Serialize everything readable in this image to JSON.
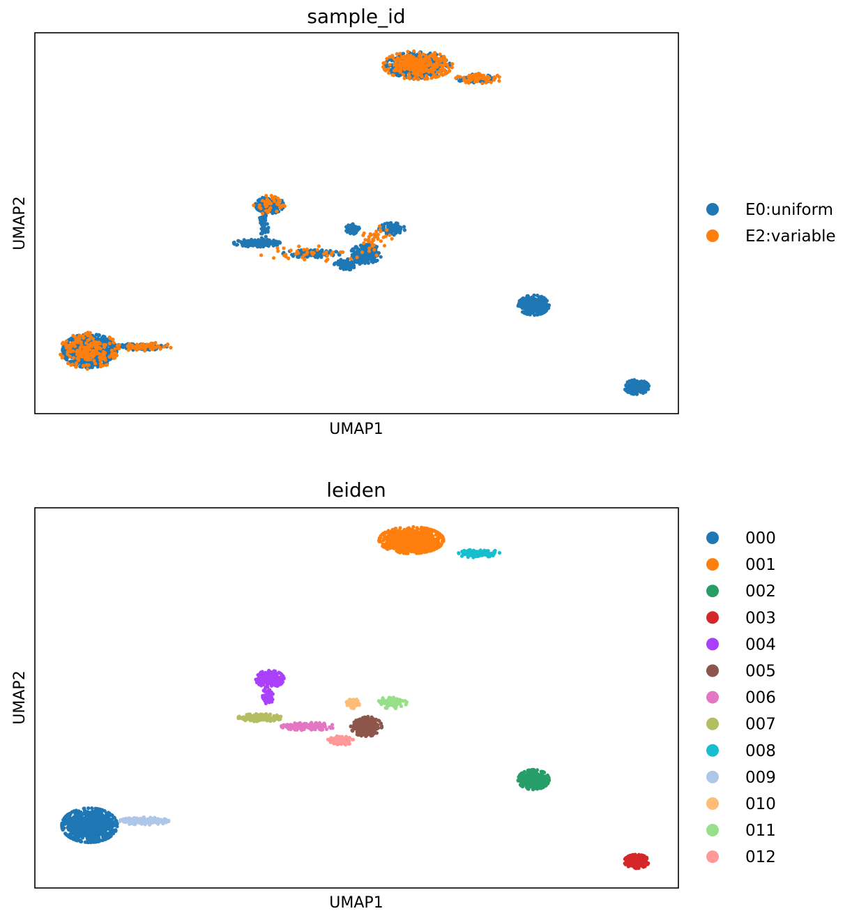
{
  "chart_data": [
    {
      "type": "scatter",
      "title": "sample_id",
      "xlabel": "UMAP1",
      "ylabel": "UMAP2",
      "xlim": [
        0,
        100
      ],
      "ylim": [
        0,
        100
      ],
      "grid": false,
      "ticks": false,
      "legend_position": "right",
      "legend": [
        {
          "label": "E0:uniform",
          "color": "#1f77b4"
        },
        {
          "label": "E2:variable",
          "color": "#ff7f0e"
        }
      ],
      "clusters": [
        {
          "label": "E0:uniform",
          "x": 8.5,
          "y": 16.5,
          "rx": 4.2,
          "ry": 4.4,
          "n": 800
        },
        {
          "label": "E0:uniform",
          "x": 16.5,
          "y": 17.6,
          "rx": 4.0,
          "ry": 0.9,
          "n": 150
        },
        {
          "label": "E0:uniform",
          "x": 59.5,
          "y": 91.5,
          "rx": 5.0,
          "ry": 3.4,
          "n": 500
        },
        {
          "label": "E0:uniform",
          "x": 68.5,
          "y": 88.0,
          "rx": 3.0,
          "ry": 1.1,
          "n": 80
        },
        {
          "label": "E0:uniform",
          "x": 77.5,
          "y": 28.5,
          "rx": 2.4,
          "ry": 2.6,
          "n": 350
        },
        {
          "label": "E0:uniform",
          "x": 93.5,
          "y": 7.0,
          "rx": 1.9,
          "ry": 1.9,
          "n": 250
        },
        {
          "label": "E0:uniform",
          "x": 36.5,
          "y": 54.8,
          "rx": 2.2,
          "ry": 2.2,
          "n": 200
        },
        {
          "label": "E0:uniform",
          "x": 35.5,
          "y": 49.0,
          "rx": 0.8,
          "ry": 3.5,
          "n": 70
        },
        {
          "label": "E0:uniform",
          "x": 34.5,
          "y": 44.8,
          "rx": 3.6,
          "ry": 1.0,
          "n": 180
        },
        {
          "label": "E0:uniform",
          "x": 43.0,
          "y": 42.0,
          "rx": 4.5,
          "ry": 1.0,
          "n": 160
        },
        {
          "label": "E0:uniform",
          "x": 48.5,
          "y": 39.2,
          "rx": 2.0,
          "ry": 1.4,
          "n": 80
        },
        {
          "label": "E0:uniform",
          "x": 51.5,
          "y": 42.0,
          "rx": 2.4,
          "ry": 2.5,
          "n": 250
        },
        {
          "label": "E0:uniform",
          "x": 49.5,
          "y": 48.5,
          "rx": 1.2,
          "ry": 1.3,
          "n": 60
        },
        {
          "label": "E0:uniform",
          "x": 55.5,
          "y": 48.5,
          "rx": 2.0,
          "ry": 1.6,
          "n": 90
        },
        {
          "label": "E2:variable",
          "x": 59.5,
          "y": 91.5,
          "rx": 5.4,
          "ry": 3.7,
          "n": 300
        },
        {
          "label": "E2:variable",
          "x": 69.0,
          "y": 88.0,
          "rx": 3.6,
          "ry": 1.3,
          "n": 70
        },
        {
          "label": "E2:variable",
          "x": 8.5,
          "y": 16.5,
          "rx": 4.6,
          "ry": 4.8,
          "n": 200
        },
        {
          "label": "E2:variable",
          "x": 17.0,
          "y": 17.6,
          "rx": 4.4,
          "ry": 1.1,
          "n": 60
        },
        {
          "label": "E2:variable",
          "x": 36.5,
          "y": 54.8,
          "rx": 2.5,
          "ry": 2.5,
          "n": 40
        },
        {
          "label": "E2:variable",
          "x": 43.0,
          "y": 42.0,
          "rx": 8.0,
          "ry": 2.0,
          "n": 40
        },
        {
          "label": "E2:variable",
          "x": 52.5,
          "y": 45.5,
          "rx": 3.0,
          "ry": 4.0,
          "n": 40
        }
      ]
    },
    {
      "type": "scatter",
      "title": "leiden",
      "xlabel": "UMAP1",
      "ylabel": "UMAP2",
      "xlim": [
        0,
        100
      ],
      "ylim": [
        0,
        100
      ],
      "grid": false,
      "ticks": false,
      "legend_position": "right",
      "legend": [
        {
          "label": "000",
          "color": "#1f77b4"
        },
        {
          "label": "001",
          "color": "#ff7f0e"
        },
        {
          "label": "002",
          "color": "#279e68"
        },
        {
          "label": "003",
          "color": "#d62728"
        },
        {
          "label": "004",
          "color": "#aa40fc"
        },
        {
          "label": "005",
          "color": "#8c564b"
        },
        {
          "label": "006",
          "color": "#e377c2"
        },
        {
          "label": "007",
          "color": "#b5bd61"
        },
        {
          "label": "008",
          "color": "#17becf"
        },
        {
          "label": "009",
          "color": "#aec7e8"
        },
        {
          "label": "010",
          "color": "#ffbb78"
        },
        {
          "label": "011",
          "color": "#98df8a"
        },
        {
          "label": "012",
          "color": "#ff9896"
        }
      ],
      "clusters": [
        {
          "label": "000",
          "x": 8.5,
          "y": 16.5,
          "rx": 4.3,
          "ry": 4.5,
          "n": 1000
        },
        {
          "label": "009",
          "x": 17.0,
          "y": 17.6,
          "rx": 3.8,
          "ry": 1.0,
          "n": 180
        },
        {
          "label": "001",
          "x": 58.5,
          "y": 91.5,
          "rx": 5.0,
          "ry": 3.5,
          "n": 800
        },
        {
          "label": "008",
          "x": 69.0,
          "y": 88.0,
          "rx": 3.4,
          "ry": 1.1,
          "n": 120
        },
        {
          "label": "002",
          "x": 77.5,
          "y": 28.5,
          "rx": 2.4,
          "ry": 2.6,
          "n": 350
        },
        {
          "label": "003",
          "x": 93.5,
          "y": 7.0,
          "rx": 1.9,
          "ry": 1.8,
          "n": 250
        },
        {
          "label": "004",
          "x": 36.5,
          "y": 55.0,
          "rx": 2.2,
          "ry": 2.2,
          "n": 250
        },
        {
          "label": "004",
          "x": 36.2,
          "y": 50.5,
          "rx": 0.8,
          "ry": 2.5,
          "n": 60
        },
        {
          "label": "007",
          "x": 35.0,
          "y": 44.8,
          "rx": 3.4,
          "ry": 1.0,
          "n": 200
        },
        {
          "label": "006",
          "x": 42.5,
          "y": 42.5,
          "rx": 4.2,
          "ry": 1.0,
          "n": 180
        },
        {
          "label": "012",
          "x": 47.5,
          "y": 38.8,
          "rx": 2.0,
          "ry": 1.2,
          "n": 100
        },
        {
          "label": "005",
          "x": 51.5,
          "y": 42.5,
          "rx": 2.4,
          "ry": 2.6,
          "n": 250
        },
        {
          "label": "010",
          "x": 49.5,
          "y": 48.5,
          "rx": 1.1,
          "ry": 1.3,
          "n": 60
        },
        {
          "label": "011",
          "x": 55.5,
          "y": 48.8,
          "rx": 2.3,
          "ry": 1.6,
          "n": 90
        }
      ]
    }
  ]
}
